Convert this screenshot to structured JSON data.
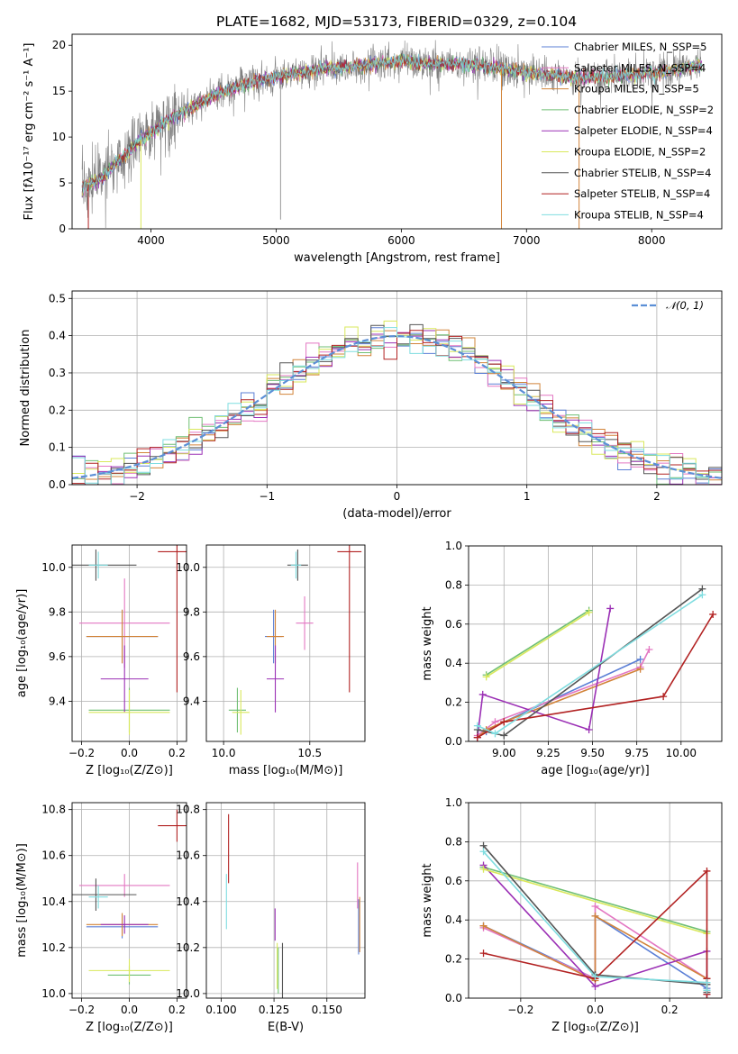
{
  "figure": {
    "title": "PLATE=1682, MJD=53173, FIBERID=0329, z=0.104",
    "colors": {
      "chabrier_miles": "#5b7fd6",
      "salpeter_miles": "#e377c2",
      "kroupa_miles": "#d2843a",
      "chabrier_elodie": "#6fbf73",
      "salpeter_elodie": "#9b30b5",
      "kroupa_elodie": "#d9e85b",
      "chabrier_stelib": "#555555",
      "salpeter_stelib": "#b22222",
      "kroupa_stelib": "#7fdde0",
      "gaussian": "#5b8fd6",
      "grid": "#b0b0b0"
    }
  },
  "chart_data": [
    {
      "type": "line",
      "id": "spectrum",
      "title": "PLATE=1682, MJD=53173, FIBERID=0329, z=0.104",
      "xlabel": "wavelength [Angstrom, rest frame]",
      "ylabel": "Flux [fλ10⁻¹⁷ erg cm⁻² s⁻¹ A⁻¹]",
      "xlim": [
        3370,
        8560
      ],
      "ylim": [
        0,
        21.2
      ],
      "xticks": [
        "4000",
        "5000",
        "6000",
        "7000",
        "8000"
      ],
      "xtick_values": [
        4000,
        5000,
        6000,
        7000,
        8000
      ],
      "yticks": [
        "0",
        "5",
        "10",
        "15",
        "20"
      ],
      "ytick_values": [
        0,
        5,
        10,
        15,
        20
      ],
      "grid": false,
      "legend_placement": "upper right",
      "spectrum_anchor": {
        "wavelength": [
          3450,
          3600,
          3750,
          3900,
          4000,
          4100,
          4200,
          4300,
          4400,
          4500,
          4600,
          4700,
          4800,
          4900,
          5000,
          5100,
          5200,
          5300,
          5400,
          5500,
          5600,
          5700,
          5800,
          5900,
          6000,
          6200,
          6400,
          6600,
          6800,
          7000,
          7200,
          7400,
          7600,
          7800,
          8000,
          8200,
          8400
        ],
        "flux": [
          4.5,
          5.5,
          7.5,
          9.5,
          10.5,
          11.5,
          12.5,
          13.0,
          13.8,
          14.5,
          15.0,
          15.5,
          16.0,
          16.3,
          16.5,
          16.8,
          17.0,
          17.3,
          17.5,
          17.6,
          17.7,
          17.8,
          18.0,
          18.2,
          18.3,
          18.0,
          18.0,
          17.8,
          17.5,
          17.0,
          16.8,
          16.5,
          16.5,
          16.8,
          17.0,
          17.3,
          17.8
        ]
      },
      "series": [
        {
          "name": "Chabrier MILES, N_SSP=5",
          "color_key": "chabrier_miles"
        },
        {
          "name": "Salpeter MILES, N_SSP=4",
          "color_key": "salpeter_miles"
        },
        {
          "name": "Kroupa MILES, N_SSP=5",
          "color_key": "kroupa_miles"
        },
        {
          "name": "Chabrier ELODIE, N_SSP=2",
          "color_key": "chabrier_elodie"
        },
        {
          "name": "Salpeter ELODIE, N_SSP=4",
          "color_key": "salpeter_elodie"
        },
        {
          "name": "Kroupa ELODIE, N_SSP=2",
          "color_key": "kroupa_elodie"
        },
        {
          "name": "Chabrier STELIB, N_SSP=4",
          "color_key": "chabrier_stelib"
        },
        {
          "name": "Salpeter STELIB, N_SSP=4",
          "color_key": "salpeter_stelib"
        },
        {
          "name": "Kroupa STELIB, N_SSP=4",
          "color_key": "kroupa_stelib"
        }
      ]
    },
    {
      "type": "line",
      "id": "residuals",
      "xlabel": "(data-model)/error",
      "ylabel": "Normed distribution",
      "xlim": [
        -2.5,
        2.5
      ],
      "ylim": [
        0,
        0.52
      ],
      "xticks": [
        "−2",
        "−1",
        "0",
        "1",
        "2"
      ],
      "xtick_values": [
        -2,
        -1,
        0,
        1,
        2
      ],
      "yticks": [
        "0.0",
        "0.1",
        "0.2",
        "0.3",
        "0.4",
        "0.5"
      ],
      "ytick_values": [
        0,
        0.1,
        0.2,
        0.3,
        0.4,
        0.5
      ],
      "grid": true,
      "legend": "𝒩(0, 1)",
      "legend_placement": "upper right",
      "gaussian": {
        "mean": 0,
        "sigma": 1
      },
      "bin_width": 0.1
    },
    {
      "type": "scatter",
      "id": "age_vs_Z",
      "xlabel": "Z [log₁₀(Z/Z⊙)]",
      "ylabel": "age  [log₁₀(age/yr)]",
      "xlim": [
        -0.24,
        0.24
      ],
      "ylim": [
        9.22,
        10.1
      ],
      "xticks": [
        "−0.2",
        "0.0",
        "0.2"
      ],
      "xtick_values": [
        -0.2,
        0,
        0.2
      ],
      "yticks": [
        "9.4",
        "9.6",
        "9.8",
        "10.0"
      ],
      "ytick_values": [
        9.4,
        9.6,
        9.8,
        10.0
      ],
      "grid": true,
      "points": [
        {
          "key": "chabrier_miles",
          "x": -0.03,
          "y": 9.69,
          "xerr": 0.15,
          "yerr": 0.12
        },
        {
          "key": "salpeter_miles",
          "x": -0.02,
          "y": 9.75,
          "xerr": 0.19,
          "yerr": 0.2
        },
        {
          "key": "kroupa_miles",
          "x": -0.03,
          "y": 9.69,
          "xerr": 0.15,
          "yerr": 0.12
        },
        {
          "key": "chabrier_elodie",
          "x": 0.0,
          "y": 9.36,
          "xerr": 0.17,
          "yerr": 0.1
        },
        {
          "key": "salpeter_elodie",
          "x": -0.02,
          "y": 9.5,
          "xerr": 0.1,
          "yerr": 0.15
        },
        {
          "key": "kroupa_elodie",
          "x": 0.0,
          "y": 9.35,
          "xerr": 0.17,
          "yerr": 0.1
        },
        {
          "key": "chabrier_stelib",
          "x": -0.14,
          "y": 10.01,
          "xerr": 0.17,
          "yerr": 0.07
        },
        {
          "key": "salpeter_stelib",
          "x": 0.2,
          "y": 10.07,
          "xerr": 0.08,
          "yerr": 0.63
        },
        {
          "key": "kroupa_stelib",
          "x": -0.13,
          "y": 10.01,
          "xerr": 0.04,
          "yerr": 0.06
        }
      ]
    },
    {
      "type": "scatter",
      "id": "age_vs_mass",
      "xlabel": "mass [log₁₀(M/M⊙)]",
      "ylabel": "",
      "xlim": [
        9.9,
        10.82
      ],
      "ylim": [
        9.22,
        10.1
      ],
      "xticks": [
        "10.0",
        "10.5"
      ],
      "xtick_values": [
        10.0,
        10.5
      ],
      "yticks": [
        "9.4",
        "9.6",
        "9.8",
        "10.0"
      ],
      "ytick_values": [
        9.4,
        9.6,
        9.8,
        10.0
      ],
      "grid": true,
      "points": [
        {
          "key": "chabrier_miles",
          "x": 10.29,
          "y": 9.69,
          "xerr": 0.05,
          "yerr": 0.12
        },
        {
          "key": "salpeter_miles",
          "x": 10.47,
          "y": 9.75,
          "xerr": 0.05,
          "yerr": 0.12
        },
        {
          "key": "kroupa_miles",
          "x": 10.3,
          "y": 9.69,
          "xerr": 0.05,
          "yerr": 0.12
        },
        {
          "key": "chabrier_elodie",
          "x": 10.08,
          "y": 9.36,
          "xerr": 0.05,
          "yerr": 0.1
        },
        {
          "key": "salpeter_elodie",
          "x": 10.3,
          "y": 9.5,
          "xerr": 0.05,
          "yerr": 0.15
        },
        {
          "key": "kroupa_elodie",
          "x": 10.1,
          "y": 9.35,
          "xerr": 0.05,
          "yerr": 0.1
        },
        {
          "key": "chabrier_stelib",
          "x": 10.43,
          "y": 10.01,
          "xerr": 0.06,
          "yerr": 0.07
        },
        {
          "key": "salpeter_stelib",
          "x": 10.73,
          "y": 10.07,
          "xerr": 0.07,
          "yerr": 0.63
        },
        {
          "key": "kroupa_stelib",
          "x": 10.42,
          "y": 10.01,
          "xerr": 0.03,
          "yerr": 0.06
        }
      ]
    },
    {
      "type": "line",
      "id": "mass_weight_vs_age",
      "xlabel": "age  [log₁₀(age/yr)]",
      "ylabel": "mass weight",
      "xlim": [
        8.8,
        10.23
      ],
      "ylim": [
        0,
        1.0
      ],
      "xticks": [
        "9.00",
        "9.25",
        "9.50",
        "9.75",
        "10.00"
      ],
      "xtick_values": [
        9.0,
        9.25,
        9.5,
        9.75,
        10.0
      ],
      "yticks": [
        "0.0",
        "0.2",
        "0.4",
        "0.6",
        "0.8",
        "1.0"
      ],
      "ytick_values": [
        0,
        0.2,
        0.4,
        0.6,
        0.8,
        1.0
      ],
      "grid": true,
      "series": [
        {
          "key": "chabrier_miles",
          "x": [
            8.85,
            8.9,
            9.0,
            9.77
          ],
          "y": [
            0.02,
            0.05,
            0.1,
            0.42
          ]
        },
        {
          "key": "salpeter_miles",
          "x": [
            8.85,
            8.95,
            9.77,
            9.82
          ],
          "y": [
            0.03,
            0.1,
            0.38,
            0.47
          ]
        },
        {
          "key": "kroupa_miles",
          "x": [
            8.85,
            8.9,
            9.0,
            9.77
          ],
          "y": [
            0.02,
            0.06,
            0.1,
            0.37
          ]
        },
        {
          "key": "chabrier_elodie",
          "x": [
            8.9,
            9.48
          ],
          "y": [
            0.34,
            0.67
          ]
        },
        {
          "key": "salpeter_elodie",
          "x": [
            8.85,
            8.88,
            9.48,
            9.6
          ],
          "y": [
            0.02,
            0.24,
            0.06,
            0.68
          ]
        },
        {
          "key": "kroupa_elodie",
          "x": [
            8.9,
            9.48
          ],
          "y": [
            0.33,
            0.66
          ]
        },
        {
          "key": "chabrier_stelib",
          "x": [
            8.85,
            9.0,
            10.12
          ],
          "y": [
            0.06,
            0.03,
            0.78
          ]
        },
        {
          "key": "salpeter_stelib",
          "x": [
            8.85,
            9.0,
            9.9,
            10.18
          ],
          "y": [
            0.02,
            0.1,
            0.23,
            0.65
          ]
        },
        {
          "key": "kroupa_stelib",
          "x": [
            8.85,
            8.95,
            10.12
          ],
          "y": [
            0.08,
            0.04,
            0.75
          ]
        }
      ]
    },
    {
      "type": "scatter",
      "id": "mass_vs_Z",
      "xlabel": "Z [log₁₀(Z/Z⊙)]",
      "ylabel": "mass [log₁₀(M/M⊙)]",
      "xlim": [
        -0.24,
        0.24
      ],
      "ylim": [
        9.98,
        10.83
      ],
      "xticks": [
        "−0.2",
        "0.0",
        "0.2"
      ],
      "xtick_values": [
        -0.2,
        0,
        0.2
      ],
      "yticks": [
        "10.0",
        "10.2",
        "10.4",
        "10.6",
        "10.8"
      ],
      "ytick_values": [
        10.0,
        10.2,
        10.4,
        10.6,
        10.8
      ],
      "grid": true,
      "points": [
        {
          "key": "chabrier_miles",
          "x": -0.03,
          "y": 10.29,
          "xerr": 0.15,
          "yerr": 0.05
        },
        {
          "key": "salpeter_miles",
          "x": -0.02,
          "y": 10.47,
          "xerr": 0.19,
          "yerr": 0.05
        },
        {
          "key": "kroupa_miles",
          "x": -0.03,
          "y": 10.3,
          "xerr": 0.15,
          "yerr": 0.05
        },
        {
          "key": "chabrier_elodie",
          "x": 0.0,
          "y": 10.08,
          "xerr": 0.09,
          "yerr": 0.04
        },
        {
          "key": "salpeter_elodie",
          "x": -0.02,
          "y": 10.3,
          "xerr": 0.1,
          "yerr": 0.04
        },
        {
          "key": "kroupa_elodie",
          "x": 0.0,
          "y": 10.1,
          "xerr": 0.17,
          "yerr": 0.05
        },
        {
          "key": "chabrier_stelib",
          "x": -0.14,
          "y": 10.43,
          "xerr": 0.17,
          "yerr": 0.07
        },
        {
          "key": "salpeter_stelib",
          "x": 0.2,
          "y": 10.73,
          "xerr": 0.08,
          "yerr": 0.07
        },
        {
          "key": "kroupa_stelib",
          "x": -0.13,
          "y": 10.42,
          "xerr": 0.04,
          "yerr": 0.05
        }
      ]
    },
    {
      "type": "scatter",
      "id": "mass_vs_ebv",
      "xlabel": "E(B-V)",
      "ylabel": "",
      "xlim": [
        0.093,
        0.168
      ],
      "ylim": [
        9.98,
        10.83
      ],
      "xticks": [
        "0.100",
        "0.125",
        "0.150"
      ],
      "xtick_values": [
        0.1,
        0.125,
        0.15
      ],
      "yticks": [
        "10.0",
        "10.2",
        "10.4",
        "10.6",
        "10.8"
      ],
      "ytick_values": [
        10.0,
        10.2,
        10.4,
        10.6,
        10.8
      ],
      "grid": true,
      "points": [
        {
          "key": "chabrier_miles",
          "x": 0.165,
          "y": 10.29,
          "xerr": 0,
          "yerr": 0.12
        },
        {
          "key": "salpeter_miles",
          "x": 0.1645,
          "y": 10.47,
          "xerr": 0,
          "yerr": 0.1
        },
        {
          "key": "kroupa_miles",
          "x": 0.1655,
          "y": 10.3,
          "xerr": 0,
          "yerr": 0.12
        },
        {
          "key": "chabrier_elodie",
          "x": 0.127,
          "y": 10.1,
          "xerr": 0,
          "yerr": 0.1
        },
        {
          "key": "salpeter_elodie",
          "x": 0.1255,
          "y": 10.3,
          "xerr": 0,
          "yerr": 0.07
        },
        {
          "key": "kroupa_elodie",
          "x": 0.1265,
          "y": 10.12,
          "xerr": 0,
          "yerr": 0.1
        },
        {
          "key": "chabrier_stelib",
          "x": 0.129,
          "y": 10.1,
          "xerr": 0,
          "yerr": 0.12
        },
        {
          "key": "salpeter_stelib",
          "x": 0.1035,
          "y": 10.63,
          "xerr": 0,
          "yerr": 0.15
        },
        {
          "key": "kroupa_stelib",
          "x": 0.1025,
          "y": 10.4,
          "xerr": 0,
          "yerr": 0.12
        }
      ]
    },
    {
      "type": "line",
      "id": "mass_weight_vs_Z",
      "xlabel": "Z [log₁₀(Z/Z⊙)]",
      "ylabel": "mass weight",
      "xlim": [
        -0.34,
        0.34
      ],
      "ylim": [
        0,
        1.0
      ],
      "xticks": [
        "−0.2",
        "0.0",
        "0.2"
      ],
      "xtick_values": [
        -0.2,
        0,
        0.2
      ],
      "yticks": [
        "0.0",
        "0.2",
        "0.4",
        "0.6",
        "0.8",
        "1.0"
      ],
      "ytick_values": [
        0,
        0.2,
        0.4,
        0.6,
        0.8,
        1.0
      ],
      "grid": true,
      "series": [
        {
          "key": "chabrier_miles",
          "x": [
            -0.3,
            0.0,
            0.0,
            0.3,
            0.3
          ],
          "y": [
            0.37,
            0.1,
            0.42,
            0.05,
            0.02
          ]
        },
        {
          "key": "salpeter_miles",
          "x": [
            -0.3,
            0.0,
            0.0,
            0.3
          ],
          "y": [
            0.36,
            0.1,
            0.47,
            0.1
          ]
        },
        {
          "key": "kroupa_miles",
          "x": [
            -0.3,
            0.0,
            0.0,
            0.3,
            0.3
          ],
          "y": [
            0.37,
            0.09,
            0.42,
            0.1,
            0.02
          ]
        },
        {
          "key": "chabrier_elodie",
          "x": [
            -0.3,
            0.3
          ],
          "y": [
            0.67,
            0.34
          ]
        },
        {
          "key": "salpeter_elodie",
          "x": [
            -0.3,
            0.0,
            0.3,
            0.3
          ],
          "y": [
            0.68,
            0.06,
            0.24,
            0.02
          ]
        },
        {
          "key": "kroupa_elodie",
          "x": [
            -0.3,
            0.3
          ],
          "y": [
            0.66,
            0.33
          ]
        },
        {
          "key": "chabrier_stelib",
          "x": [
            -0.3,
            0.0,
            0.3,
            0.3
          ],
          "y": [
            0.78,
            0.12,
            0.07,
            0.03
          ]
        },
        {
          "key": "salpeter_stelib",
          "x": [
            -0.3,
            0.0,
            0.3,
            0.3,
            0.3
          ],
          "y": [
            0.23,
            0.1,
            0.65,
            0.1,
            0.02
          ]
        },
        {
          "key": "kroupa_stelib",
          "x": [
            -0.3,
            0.0,
            0.3,
            0.3
          ],
          "y": [
            0.75,
            0.11,
            0.08,
            0.04
          ]
        }
      ]
    }
  ]
}
